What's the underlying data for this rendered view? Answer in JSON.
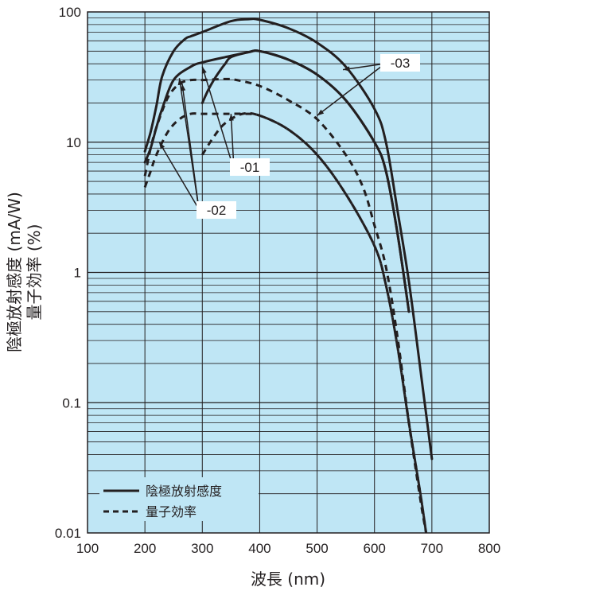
{
  "chart_data": {
    "type": "line",
    "xlabel": "波長 (nm)",
    "ylabel_line1": "陰極放射感度 (mA/W)",
    "ylabel_line2": "量子効率 (%)",
    "x_ticks": [
      "100",
      "200",
      "300",
      "400",
      "500",
      "600",
      "700",
      "800"
    ],
    "y_ticks": [
      "0.01",
      "0.1",
      "1",
      "10",
      "100"
    ],
    "xlim": [
      100,
      800
    ],
    "ylim": [
      0.01,
      100
    ],
    "yscale": "log",
    "grid": true,
    "background_color": "#bfe6f5",
    "line_color": "#231f20",
    "legend": {
      "position": "bottom-left",
      "entries": [
        {
          "label": "陰極放射感度",
          "style": "solid"
        },
        {
          "label": "量子効率",
          "style": "dashed"
        }
      ]
    },
    "curve_labels": [
      "-01",
      "-02",
      "-03"
    ],
    "series": [
      {
        "name": "-01",
        "style": "solid",
        "points": [
          [
            300,
            20
          ],
          [
            310,
            25
          ],
          [
            320,
            30
          ],
          [
            330,
            35
          ],
          [
            340,
            40
          ],
          [
            350,
            45
          ],
          [
            380,
            49
          ],
          [
            400,
            50
          ],
          [
            450,
            43
          ],
          [
            500,
            33
          ],
          [
            550,
            21
          ],
          [
            600,
            10
          ],
          [
            620,
            6
          ],
          [
            640,
            2
          ],
          [
            660,
            0.5
          ]
        ]
      },
      {
        "name": "-02",
        "style": "solid",
        "points": [
          [
            200,
            7
          ],
          [
            210,
            9
          ],
          [
            220,
            13
          ],
          [
            230,
            18
          ],
          [
            250,
            30
          ],
          [
            280,
            38
          ],
          [
            300,
            41
          ],
          [
            340,
            45
          ],
          [
            380,
            49
          ],
          [
            400,
            50
          ],
          [
            450,
            43
          ],
          [
            500,
            33
          ],
          [
            550,
            21
          ],
          [
            600,
            10
          ],
          [
            620,
            6
          ],
          [
            640,
            2
          ],
          [
            660,
            0.5
          ]
        ]
      },
      {
        "name": "-03",
        "style": "solid",
        "points": [
          [
            200,
            8.5
          ],
          [
            210,
            12
          ],
          [
            220,
            19
          ],
          [
            230,
            32
          ],
          [
            250,
            50
          ],
          [
            270,
            62
          ],
          [
            280,
            65
          ],
          [
            300,
            70
          ],
          [
            350,
            85
          ],
          [
            380,
            88
          ],
          [
            400,
            87
          ],
          [
            450,
            75
          ],
          [
            500,
            58
          ],
          [
            550,
            38
          ],
          [
            600,
            18
          ],
          [
            620,
            10
          ],
          [
            640,
            3
          ],
          [
            660,
            0.85
          ],
          [
            680,
            0.18
          ],
          [
            700,
            0.037
          ]
        ]
      },
      {
        "name": "-01",
        "style": "dashed",
        "points": [
          [
            300,
            8
          ],
          [
            320,
            11
          ],
          [
            340,
            14
          ],
          [
            370,
            16.5
          ],
          [
            400,
            16
          ],
          [
            450,
            12.5
          ],
          [
            500,
            8
          ],
          [
            550,
            4
          ],
          [
            600,
            1.6
          ],
          [
            620,
            0.8
          ],
          [
            640,
            0.27
          ],
          [
            660,
            0.07
          ],
          [
            680,
            0.02
          ],
          [
            690,
            0.01
          ]
        ]
      },
      {
        "name": "-02",
        "style": "dashed",
        "points": [
          [
            200,
            4.5
          ],
          [
            210,
            6
          ],
          [
            220,
            8
          ],
          [
            240,
            12
          ],
          [
            260,
            15
          ],
          [
            280,
            16.5
          ],
          [
            300,
            16.5
          ],
          [
            340,
            16.5
          ],
          [
            370,
            16.5
          ],
          [
            400,
            16
          ],
          [
            450,
            12.5
          ],
          [
            500,
            8
          ],
          [
            550,
            4
          ],
          [
            600,
            1.6
          ],
          [
            620,
            0.8
          ],
          [
            640,
            0.27
          ],
          [
            660,
            0.07
          ],
          [
            680,
            0.02
          ],
          [
            690,
            0.01
          ]
        ]
      },
      {
        "name": "-03",
        "style": "dashed",
        "points": [
          [
            200,
            5.5
          ],
          [
            210,
            9
          ],
          [
            220,
            13
          ],
          [
            240,
            22
          ],
          [
            260,
            28
          ],
          [
            280,
            30
          ],
          [
            300,
            30
          ],
          [
            340,
            30.5
          ],
          [
            360,
            30
          ],
          [
            400,
            27
          ],
          [
            450,
            21
          ],
          [
            500,
            15
          ],
          [
            550,
            8
          ],
          [
            580,
            4.5
          ],
          [
            600,
            2.3
          ],
          [
            620,
            1.1
          ],
          [
            640,
            0.32
          ],
          [
            660,
            0.07
          ],
          [
            680,
            0.018
          ],
          [
            690,
            0.01
          ]
        ]
      }
    ]
  }
}
